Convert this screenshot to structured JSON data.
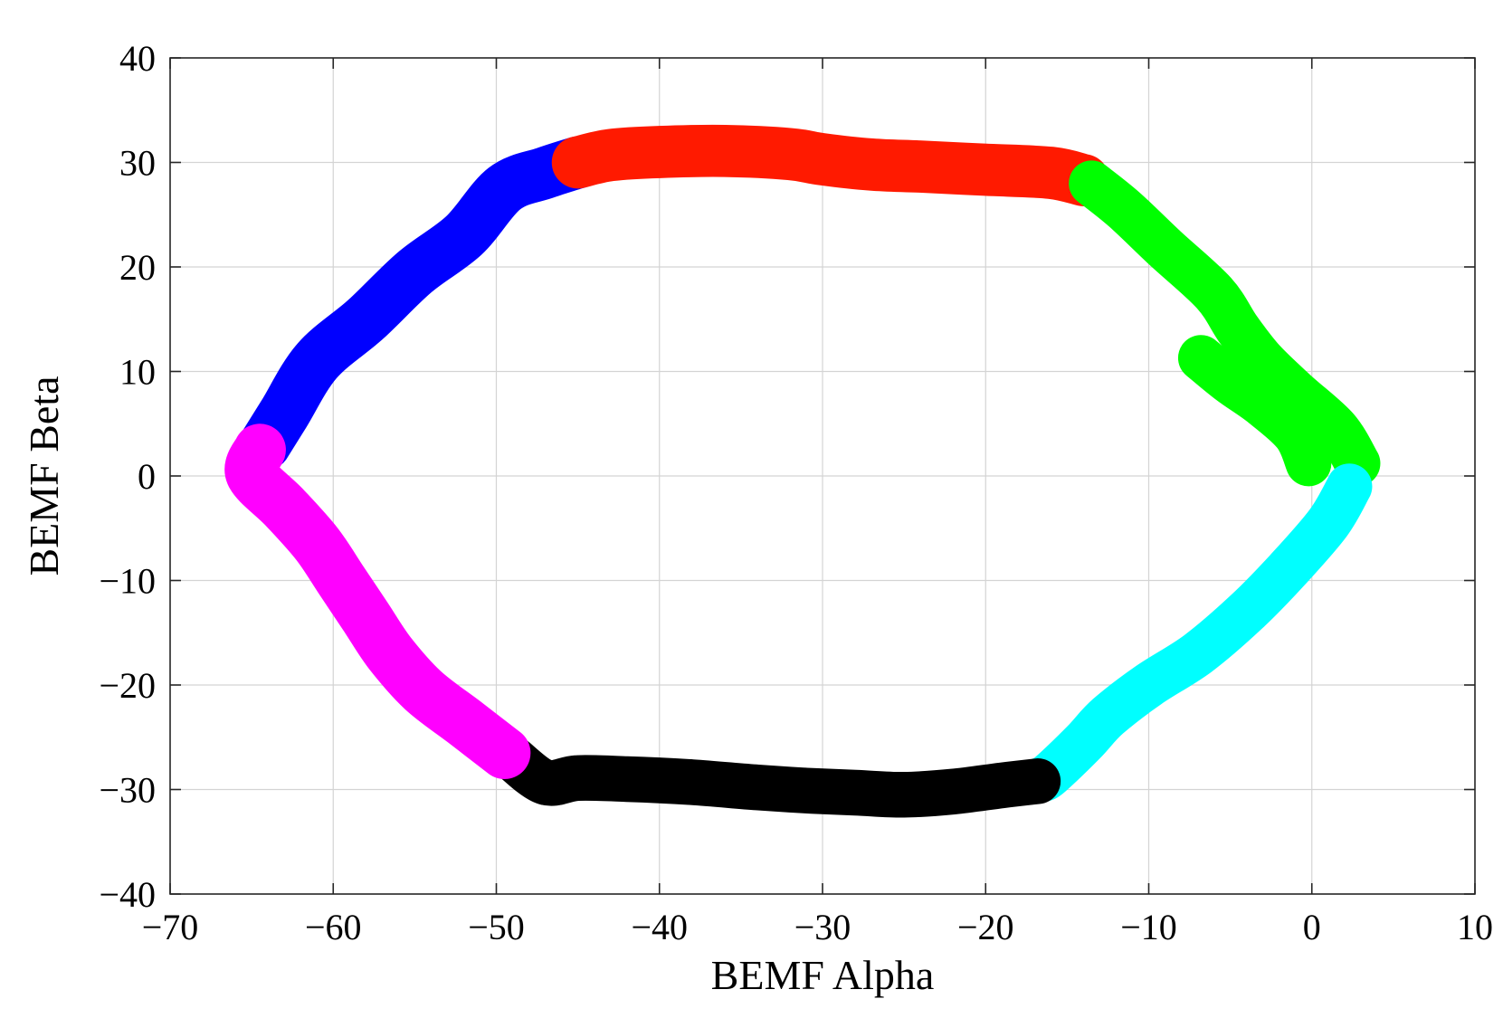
{
  "chart_data": {
    "type": "scatter",
    "title": "",
    "xlabel": "BEMF Alpha",
    "ylabel": "BEMF Beta",
    "xlim": [
      -70,
      10
    ],
    "ylim": [
      -40,
      40
    ],
    "xticks": [
      -70,
      -60,
      -50,
      -40,
      -30,
      -20,
      -10,
      0,
      10
    ],
    "yticks": [
      -40,
      -30,
      -20,
      -10,
      0,
      10,
      20,
      30,
      40
    ],
    "xtick_labels": [
      "−70",
      "−60",
      "−50",
      "−40",
      "−30",
      "−20",
      "−10",
      "0",
      "10"
    ],
    "ytick_labels": [
      "−40",
      "−30",
      "−20",
      "−10",
      "0",
      "10",
      "20",
      "30",
      "40"
    ],
    "grid": true,
    "legend": "none",
    "series": [
      {
        "color": "#0000ff",
        "width": 3.2,
        "points": [
          [
            -64.2,
            3
          ],
          [
            -63,
            6
          ],
          [
            -61,
            11
          ],
          [
            -58,
            15
          ],
          [
            -55,
            19.5
          ],
          [
            -52,
            23
          ],
          [
            -49.5,
            27.5
          ],
          [
            -47,
            29
          ],
          [
            -45,
            30
          ]
        ]
      },
      {
        "color": "#ff1a00",
        "width": 3.2,
        "points": [
          [
            -45,
            30
          ],
          [
            -43,
            30.7
          ],
          [
            -40,
            31
          ],
          [
            -36,
            31.1
          ],
          [
            -32,
            30.8
          ],
          [
            -30,
            30.3
          ],
          [
            -27,
            29.8
          ],
          [
            -24,
            29.6
          ],
          [
            -20,
            29.3
          ],
          [
            -16,
            29
          ],
          [
            -14,
            28.3
          ]
        ]
      },
      {
        "color": "#00ff00",
        "width": 2.8,
        "points": [
          [
            -13.5,
            28
          ],
          [
            -11.5,
            25.5
          ],
          [
            -9,
            21.8
          ],
          [
            -6,
            17.5
          ],
          [
            -4.5,
            14
          ],
          [
            -3,
            11
          ],
          [
            -1,
            8
          ],
          [
            1.5,
            4.5
          ],
          [
            2.8,
            1.2
          ]
        ]
      },
      {
        "color": "#00ff00",
        "width": 2.8,
        "points": [
          [
            -6.8,
            11.3
          ],
          [
            -5,
            9
          ],
          [
            -3,
            6.8
          ],
          [
            -1,
            4
          ],
          [
            -0.2,
            1.2
          ]
        ]
      },
      {
        "color": "#00ffff",
        "width": 2.8,
        "points": [
          [
            2.3,
            -1
          ],
          [
            1,
            -4.5
          ],
          [
            -1.5,
            -9
          ],
          [
            -4,
            -13
          ],
          [
            -7,
            -17
          ],
          [
            -10,
            -20
          ],
          [
            -12.5,
            -23
          ],
          [
            -14,
            -25.5
          ],
          [
            -16,
            -28.5
          ],
          [
            -16.5,
            -29
          ]
        ]
      },
      {
        "color": "#000000",
        "width": 2.8,
        "points": [
          [
            -16.8,
            -29.2
          ],
          [
            -19,
            -29.6
          ],
          [
            -22,
            -30.2
          ],
          [
            -25,
            -30.5
          ],
          [
            -28,
            -30.3
          ],
          [
            -31,
            -30.1
          ],
          [
            -34,
            -29.8
          ],
          [
            -38,
            -29.3
          ],
          [
            -42,
            -29
          ],
          [
            -45,
            -28.9
          ],
          [
            -47,
            -29.3
          ],
          [
            -49,
            -27
          ]
        ]
      },
      {
        "color": "#ff00ff",
        "width": 3.2,
        "points": [
          [
            -49.5,
            -26.5
          ],
          [
            -52,
            -23.5
          ],
          [
            -54.5,
            -20.5
          ],
          [
            -56.5,
            -17
          ],
          [
            -58,
            -13.5
          ],
          [
            -59.5,
            -10
          ],
          [
            -61,
            -6.5
          ],
          [
            -63,
            -3
          ],
          [
            -65,
            0.2
          ],
          [
            -64.5,
            2.5
          ]
        ]
      }
    ]
  }
}
